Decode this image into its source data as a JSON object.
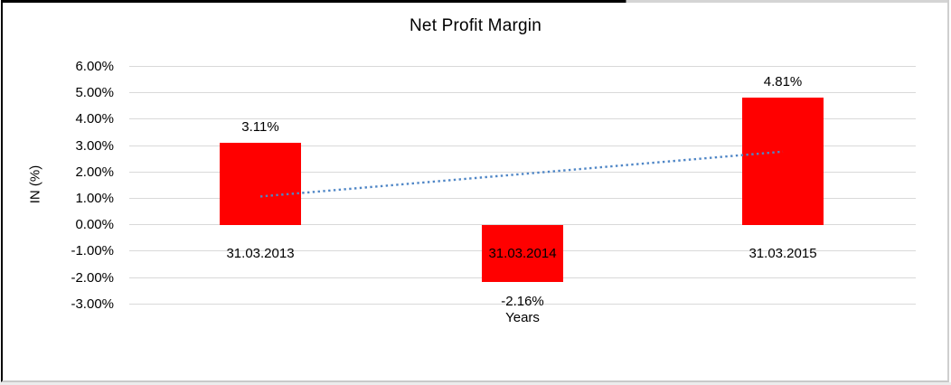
{
  "chart_data": {
    "type": "bar",
    "title": "Net Profit Margin",
    "xlabel": "Years",
    "ylabel": "IN (%)",
    "categories": [
      "31.03.2013",
      "31.03.2014",
      "31.03.2015"
    ],
    "values": [
      3.11,
      -2.16,
      4.81
    ],
    "bar_labels": [
      "3.11%",
      "-2.16%",
      "4.81%"
    ],
    "bar_color": "#ff0000",
    "y_ticks": [
      "6.00%",
      "5.00%",
      "4.00%",
      "3.00%",
      "2.00%",
      "1.00%",
      "0.00%",
      "-1.00%",
      "-2.00%",
      "-3.00%"
    ],
    "y_tick_values": [
      6,
      5,
      4,
      3,
      2,
      1,
      0,
      -1,
      -2,
      -3
    ],
    "ylim": [
      -3,
      6
    ],
    "grid": true,
    "gridline_color": "#d9d9d9",
    "legend": "none",
    "trendline": {
      "type": "linear",
      "style": "dotted",
      "color": "#4f86c6",
      "start_value": 1.07,
      "end_value": 2.77
    }
  }
}
